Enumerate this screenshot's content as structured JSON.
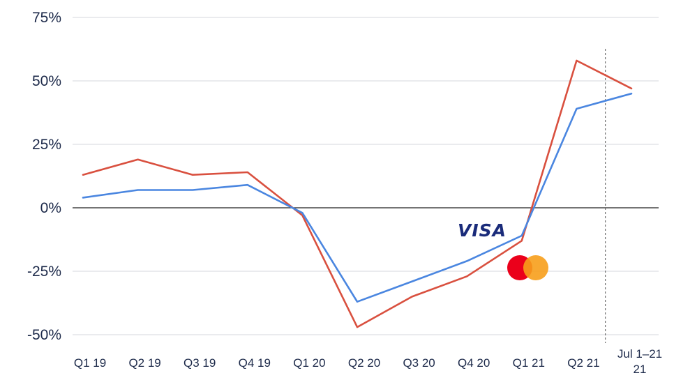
{
  "chart_data": {
    "type": "line",
    "title": "",
    "xlabel": "",
    "ylabel": "",
    "categories": [
      "Q1 19",
      "Q2 19",
      "Q3 19",
      "Q4 19",
      "Q1 20",
      "Q2 20",
      "Q3 20",
      "Q4 20",
      "Q1 21",
      "Q2 21",
      "Jul 1–21 21"
    ],
    "y_ticks": [
      75,
      50,
      25,
      0,
      -25,
      -50
    ],
    "y_tick_labels": [
      "75%",
      "50%",
      "25%",
      "0%",
      "-25%",
      "-50%"
    ],
    "ylim": [
      -50,
      75
    ],
    "grid": true,
    "series": [
      {
        "legend": "visa",
        "color": "#4a86e0",
        "values": [
          4,
          7,
          7,
          9,
          -2,
          -37,
          -29,
          -21,
          -11,
          39,
          45
        ]
      },
      {
        "legend": "mastercard",
        "color": "#d9503f",
        "values": [
          13,
          19,
          13,
          14,
          -3,
          -47,
          -35,
          -27,
          -13,
          58,
          47
        ]
      }
    ],
    "annotations": {
      "divider_after": "Q2 21",
      "visa_logo_text": "VISA",
      "mastercard_colors": [
        "#eb001b",
        "#f79e1b"
      ]
    }
  }
}
